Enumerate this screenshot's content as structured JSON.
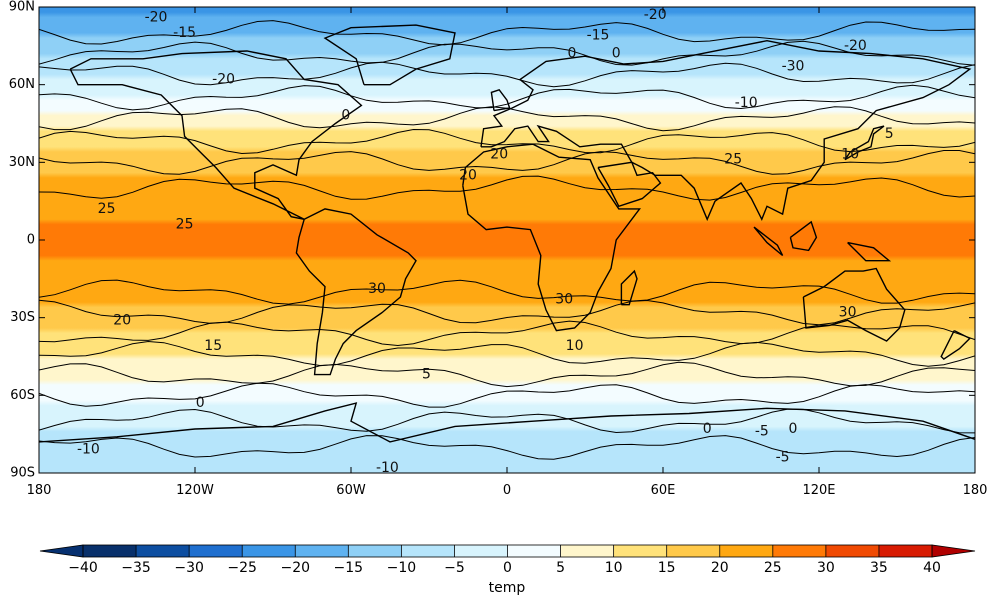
{
  "chart_data": {
    "type": "heatmap",
    "title": "",
    "map": {
      "projection": "equirectangular",
      "x_range": [
        -180,
        180
      ],
      "y_range": [
        -90,
        90
      ],
      "x_ticks": [
        {
          "value": -180,
          "label": "180"
        },
        {
          "value": -120,
          "label": "120W"
        },
        {
          "value": -60,
          "label": "60W"
        },
        {
          "value": 0,
          "label": "0"
        },
        {
          "value": 60,
          "label": "60E"
        },
        {
          "value": 120,
          "label": "120E"
        },
        {
          "value": 180,
          "label": "180"
        }
      ],
      "y_ticks": [
        {
          "value": 90,
          "label": "90N"
        },
        {
          "value": 60,
          "label": "60N"
        },
        {
          "value": 30,
          "label": "30N"
        },
        {
          "value": 0,
          "label": "0"
        },
        {
          "value": -30,
          "label": "30S"
        },
        {
          "value": -60,
          "label": "60S"
        },
        {
          "value": -90,
          "label": "90S"
        }
      ]
    },
    "temperature_profile": {
      "description_units": "temp",
      "latitudes": [
        90,
        75,
        60,
        45,
        30,
        15,
        0,
        -15,
        -30,
        -45,
        -60,
        -75,
        -90
      ],
      "zonal_mean_temp": [
        -22,
        -12,
        -3,
        8,
        18,
        24,
        26,
        24,
        18,
        10,
        2,
        -6,
        -10
      ]
    },
    "contour_labels": [
      {
        "text": "-20",
        "lon": -135,
        "lat": 86
      },
      {
        "text": "-15",
        "lon": -124,
        "lat": 80
      },
      {
        "text": "-20",
        "lon": -109,
        "lat": 62
      },
      {
        "text": "0",
        "lon": -62,
        "lat": 48
      },
      {
        "text": "0",
        "lon": 25,
        "lat": 72
      },
      {
        "text": "0",
        "lon": 42,
        "lat": 72
      },
      {
        "text": "-15",
        "lon": 35,
        "lat": 79
      },
      {
        "text": "-20",
        "lon": 57,
        "lat": 87
      },
      {
        "text": "-20",
        "lon": 134,
        "lat": 75
      },
      {
        "text": "-30",
        "lon": 110,
        "lat": 67
      },
      {
        "text": "-10",
        "lon": 92,
        "lat": 53
      },
      {
        "text": "5",
        "lon": 147,
        "lat": 41
      },
      {
        "text": "10",
        "lon": 132,
        "lat": 33
      },
      {
        "text": "20",
        "lon": -3,
        "lat": 33
      },
      {
        "text": "20",
        "lon": -15,
        "lat": 25
      },
      {
        "text": "25",
        "lon": 87,
        "lat": 31
      },
      {
        "text": "25",
        "lon": -154,
        "lat": 12
      },
      {
        "text": "25",
        "lon": -124,
        "lat": 6
      },
      {
        "text": "30",
        "lon": -50,
        "lat": -19
      },
      {
        "text": "30",
        "lon": 22,
        "lat": -23
      },
      {
        "text": "30",
        "lon": 131,
        "lat": -28
      },
      {
        "text": "20",
        "lon": -148,
        "lat": -31
      },
      {
        "text": "15",
        "lon": -113,
        "lat": -41
      },
      {
        "text": "10",
        "lon": 26,
        "lat": -41
      },
      {
        "text": "5",
        "lon": -31,
        "lat": -52
      },
      {
        "text": "0",
        "lon": -118,
        "lat": -63
      },
      {
        "text": "-10",
        "lon": -161,
        "lat": -81
      },
      {
        "text": "-5",
        "lon": 98,
        "lat": -74
      },
      {
        "text": "0",
        "lon": 110,
        "lat": -73
      },
      {
        "text": "0",
        "lon": 77,
        "lat": -73
      },
      {
        "text": "-5",
        "lon": 106,
        "lat": -84
      },
      {
        "text": "-10",
        "lon": -46,
        "lat": -88
      }
    ],
    "colorbar": {
      "label": "temp",
      "levels": [
        -40,
        -35,
        -30,
        -25,
        -20,
        -15,
        -10,
        -5,
        0,
        5,
        10,
        15,
        20,
        25,
        30,
        35,
        40
      ],
      "tick_labels": [
        "−40",
        "−35",
        "−30",
        "−25",
        "−20",
        "−15",
        "−10",
        "−5",
        "0",
        "5",
        "10",
        "15",
        "20",
        "25",
        "30",
        "35",
        "40"
      ],
      "colors": [
        "#08306b",
        "#0d4ea1",
        "#1f6fcf",
        "#3a95e6",
        "#5fb2f0",
        "#8fd0f6",
        "#b6e5fb",
        "#d8f4fd",
        "#f3fcff",
        "#fff6cc",
        "#ffe27a",
        "#ffc94a",
        "#ffa812",
        "#ff7a06",
        "#f04a02",
        "#d81b02",
        "#b80000"
      ],
      "under_color": "#063070",
      "over_color": "#b00000",
      "extend": "both"
    }
  }
}
